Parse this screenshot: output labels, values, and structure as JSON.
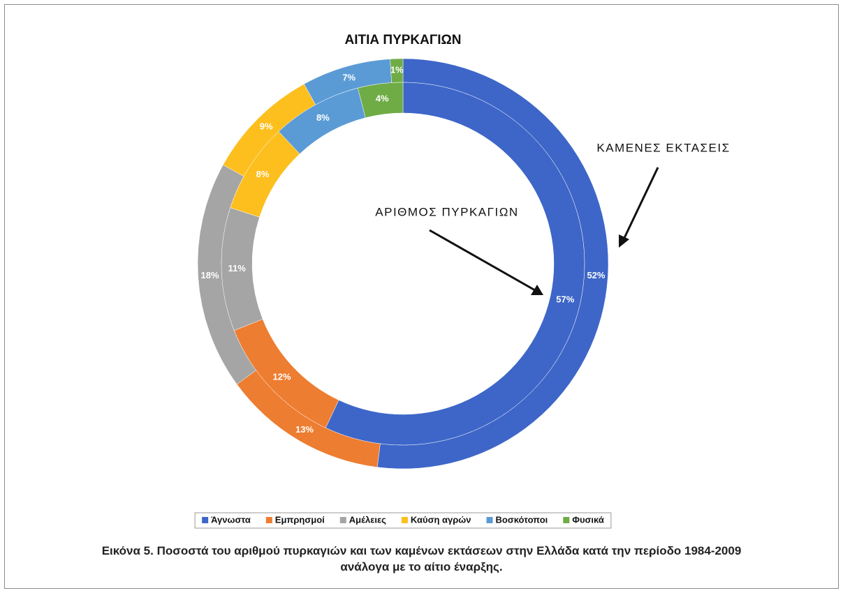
{
  "chart_data": {
    "type": "donut",
    "title": "ΑΙΤΙΑ ΠΥΡΚΑΓΙΩΝ",
    "categories": [
      "Άγνωστα",
      "Εμπρησμοί",
      "Αμέλειες",
      "Καύση αγρών",
      "Βοσκότοποι",
      "Φυσικά"
    ],
    "colors": [
      "#3d66c8",
      "#ed7d31",
      "#a5a5a5",
      "#fcbf1e",
      "#5b9bd5",
      "#6fac46"
    ],
    "series": [
      {
        "name": "ΚΑΜΕΝΕΣ ΕΚΤΑΣΕΙΣ",
        "values": [
          52,
          13,
          18,
          9,
          7,
          1
        ],
        "value_labels": [
          "52%",
          "13%",
          "18%",
          "9%",
          "7%",
          "1%"
        ]
      },
      {
        "name": "ΑΡΙΘΜΟΣ ΠΥΡΚΑΓΙΩΝ",
        "values": [
          57,
          12,
          11,
          8,
          8,
          4
        ],
        "value_labels": [
          "57%",
          "12%",
          "11%",
          "8%",
          "8%",
          "4%"
        ]
      }
    ],
    "caption": [
      "Εικόνα 5. Ποσοστά του αριθμού πυρκαγιών και των καμένων εκτάσεων στην Ελλάδα κατά την περίοδο 1984-2009",
      "ανάλογα με το αίτιο έναρξης."
    ]
  }
}
